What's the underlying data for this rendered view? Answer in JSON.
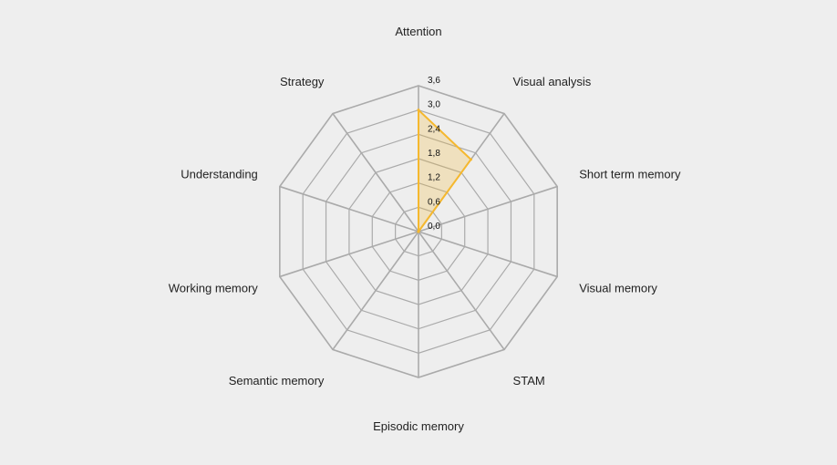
{
  "chart_data": {
    "type": "radar",
    "axes": [
      "Attention",
      "Visual analysis",
      "Short term memory",
      "Visual memory",
      "STAM",
      "Episodic memory",
      "Semantic memory",
      "Working memory",
      "Understanding",
      "Strategy"
    ],
    "ticks": [
      "0,0",
      "0,6",
      "1,2",
      "1,8",
      "2,4",
      "3,0",
      "3,6"
    ],
    "rmax": 3.6,
    "tick_step": 0.6,
    "series": [
      {
        "values": [
          3.0,
          2.2,
          0,
          0,
          0,
          0,
          0,
          0,
          0,
          0
        ],
        "color": "#f5b82e",
        "fill": "rgba(245,184,46,0.25)"
      }
    ],
    "grid_color": "#aaaaaa",
    "background": "#eeeeee"
  }
}
